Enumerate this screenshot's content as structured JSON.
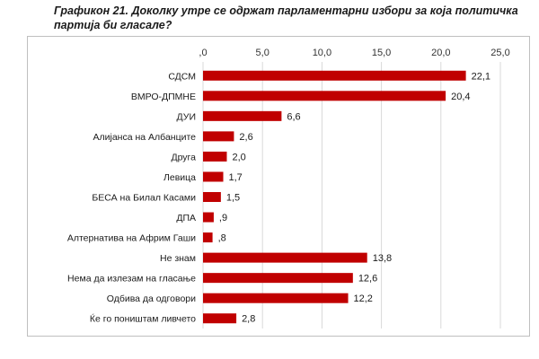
{
  "chart_data": {
    "type": "bar",
    "orientation": "horizontal",
    "title": "Графикон 21. Доколку утре се одржат парламентарни избори за која политичка партија би гласале?",
    "categories": [
      "СДСМ",
      "ВМРО-ДПМНЕ",
      "ДУИ",
      "Алијанса на Албанците",
      "Друга",
      "Левица",
      "БЕСА на Билал Касами",
      "ДПА",
      "Алтернатива на Африм Гаши",
      "Не знам",
      "Нема да излезам на гласање",
      "Одбива да одговори",
      "Ќе го поништам ливчето"
    ],
    "values": [
      22.1,
      20.4,
      6.6,
      2.6,
      2.0,
      1.7,
      1.5,
      0.9,
      0.8,
      13.8,
      12.6,
      12.2,
      2.8
    ],
    "value_labels": [
      "22,1",
      "20,4",
      "6,6",
      "2,6",
      "2,0",
      "1,7",
      "1,5",
      ",9",
      ",8",
      "13,8",
      "12,6",
      "12,2",
      "2,8"
    ],
    "xlim": [
      0,
      25
    ],
    "ticks": [
      0,
      5,
      10,
      15,
      20,
      25
    ],
    "tick_labels": [
      ",0",
      "5,0",
      "10,0",
      "15,0",
      "20,0",
      "25,0"
    ],
    "axis_position": "top",
    "grid": true,
    "legend": "none",
    "bar_color": "#c00000",
    "grid_color": "#d9d9d9",
    "xlabel": "",
    "ylabel": ""
  }
}
